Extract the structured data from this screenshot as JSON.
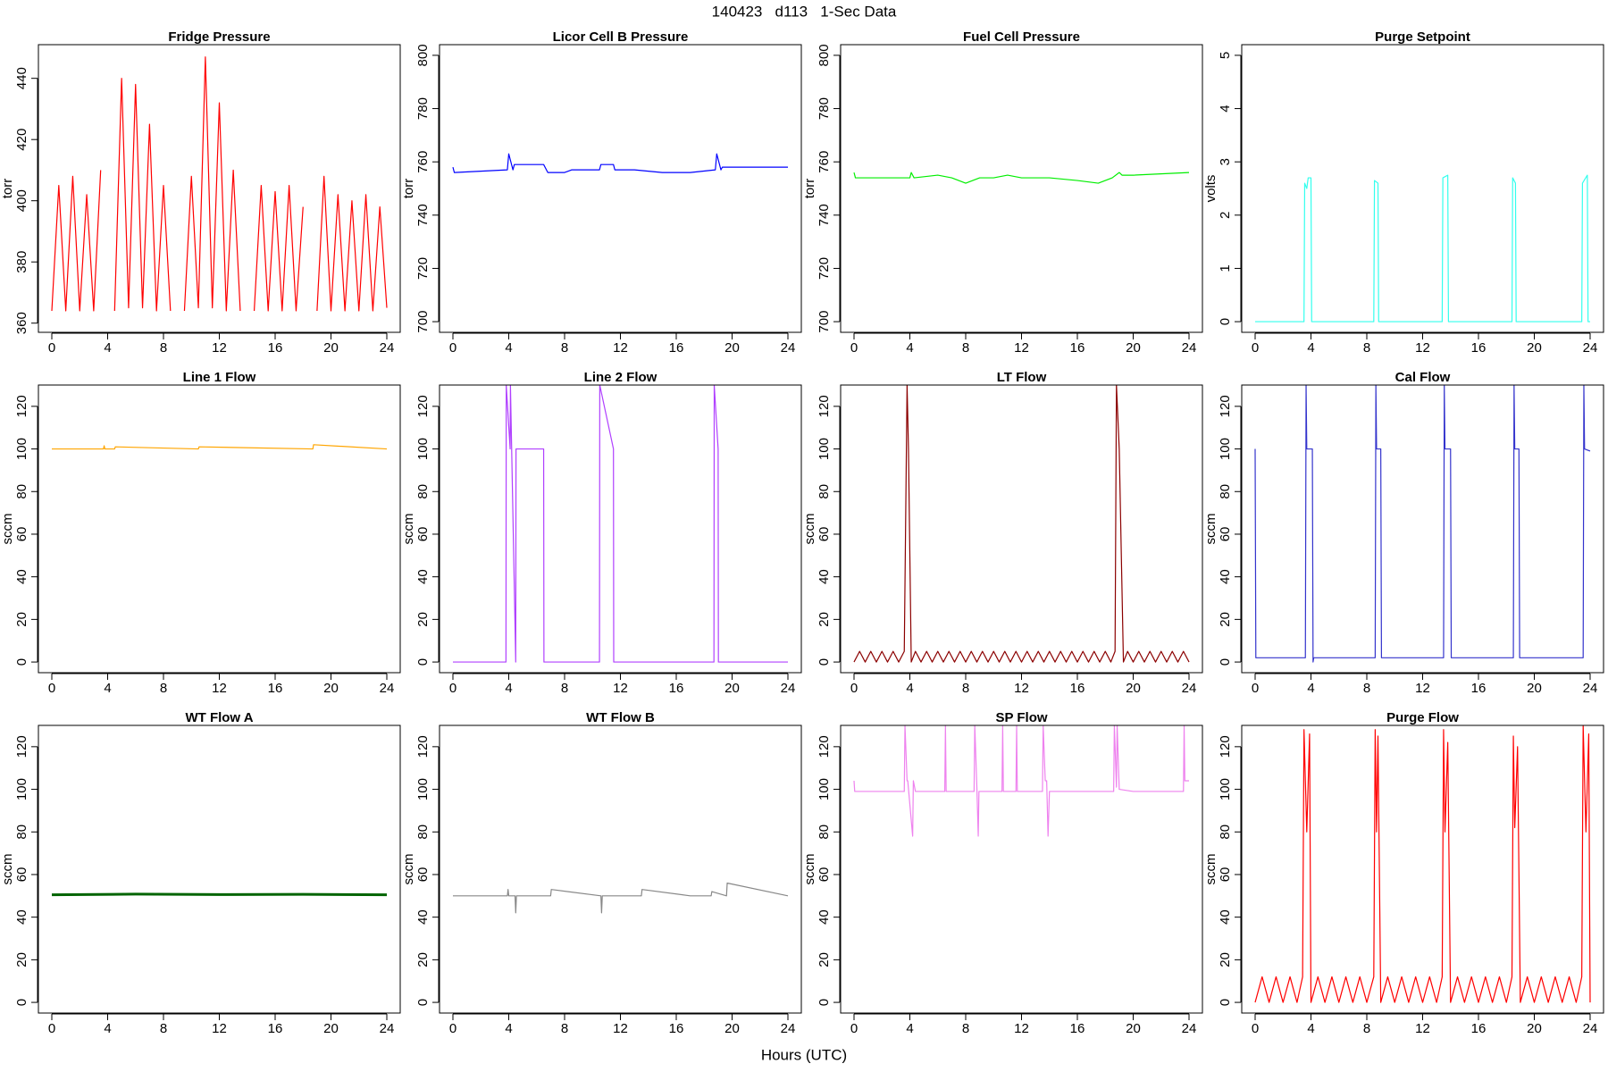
{
  "title": "140423   d113   1-Sec Data",
  "xlabel": "Hours (UTC)",
  "chart_data": [
    {
      "type": "line",
      "title": "Fridge Pressure",
      "ylabel": "torr",
      "color": "#ff0000",
      "x": [
        0,
        0.5,
        1,
        1.5,
        2,
        2.5,
        3,
        3.5,
        4,
        4.5,
        5,
        5.5,
        6,
        6.5,
        7,
        7.5,
        8,
        8.5,
        9,
        9.5,
        10,
        10.5,
        11,
        11.5,
        12,
        12.5,
        13,
        13.5,
        14,
        14.5,
        15,
        15.5,
        16,
        16.5,
        17,
        17.5,
        18,
        18.5,
        19,
        19.5,
        20,
        20.5,
        21,
        21.5,
        22,
        22.5,
        23,
        23.5,
        24
      ],
      "values": [
        364,
        405,
        364,
        408,
        364,
        402,
        364,
        410,
        null,
        364,
        440,
        365,
        438,
        365,
        425,
        364,
        405,
        364,
        null,
        364,
        408,
        365,
        447,
        365,
        432,
        364,
        410,
        364,
        null,
        364,
        405,
        364,
        403,
        364,
        405,
        364,
        398,
        null,
        364,
        408,
        364,
        402,
        364,
        400,
        364,
        402,
        364,
        398,
        365
      ],
      "xlim": [
        -0.96,
        24.96
      ],
      "ylim": [
        357,
        451
      ],
      "xticks": [
        0,
        4,
        8,
        12,
        16,
        20,
        24
      ],
      "yticks": [
        360,
        380,
        400,
        420,
        440
      ]
    },
    {
      "type": "line",
      "title": "Licor Cell B Pressure",
      "ylabel": "torr",
      "color": "#0000ff",
      "x": [
        0,
        0.1,
        3.9,
        4,
        4.3,
        4.4,
        6.5,
        6.8,
        8,
        8.5,
        10.5,
        10.6,
        11.5,
        11.6,
        13,
        15,
        17,
        18.8,
        18.9,
        19.2,
        19.3,
        20,
        24
      ],
      "values": [
        758,
        756,
        757,
        763,
        757,
        759,
        759,
        756,
        756,
        757,
        757,
        759,
        759,
        757,
        757,
        756,
        756,
        757,
        763,
        757,
        758,
        758,
        758
      ],
      "xlim": [
        -0.96,
        24.96
      ],
      "ylim": [
        696,
        804
      ],
      "xticks": [
        0,
        4,
        8,
        12,
        16,
        20,
        24
      ],
      "yticks": [
        700,
        720,
        740,
        760,
        780,
        800
      ]
    },
    {
      "type": "line",
      "title": "Fuel Cell Pressure",
      "ylabel": "torr",
      "color": "#00ee00",
      "x": [
        0,
        0.1,
        4,
        4.1,
        4.3,
        6,
        7,
        8,
        9,
        10,
        11,
        12,
        14,
        16,
        17.5,
        18.5,
        19,
        19.2,
        20,
        24
      ],
      "values": [
        756,
        754,
        754,
        756,
        754,
        755,
        754,
        752,
        754,
        754,
        755,
        754,
        754,
        753,
        752,
        754,
        756,
        755,
        755,
        756
      ],
      "xlim": [
        -0.96,
        24.96
      ],
      "ylim": [
        696,
        804
      ],
      "xticks": [
        0,
        4,
        8,
        12,
        16,
        20,
        24
      ],
      "yticks": [
        700,
        720,
        740,
        760,
        780,
        800
      ]
    },
    {
      "type": "line",
      "title": "Purge Setpoint",
      "ylabel": "volts",
      "color": "#33ffee",
      "x": [
        0,
        3.5,
        3.55,
        3.7,
        3.8,
        4,
        4.05,
        8.5,
        8.55,
        8.8,
        8.85,
        13.4,
        13.45,
        13.8,
        13.85,
        18.4,
        18.45,
        18.65,
        18.7,
        23.4,
        23.45,
        23.8,
        23.85,
        24
      ],
      "values": [
        0,
        0,
        2.6,
        2.5,
        2.7,
        2.7,
        0,
        0,
        2.65,
        2.6,
        0,
        0,
        2.7,
        2.75,
        0,
        0,
        2.7,
        2.6,
        0,
        0,
        2.6,
        2.75,
        0,
        0
      ],
      "xlim": [
        -0.96,
        24.96
      ],
      "ylim": [
        -0.2,
        5.2
      ],
      "xticks": [
        0,
        4,
        8,
        12,
        16,
        20,
        24
      ],
      "yticks": [
        0,
        1,
        2,
        3,
        4,
        5
      ]
    },
    {
      "type": "line",
      "title": "Line 1 Flow",
      "ylabel": "sccm",
      "color": "#ffa500",
      "x": [
        0,
        3.7,
        3.75,
        3.8,
        4.5,
        4.55,
        10.5,
        10.55,
        18.7,
        18.75,
        24
      ],
      "values": [
        100,
        100,
        101.5,
        100,
        100,
        101,
        100,
        101,
        100,
        102,
        100
      ],
      "xlim": [
        -0.96,
        24.96
      ],
      "ylim": [
        -5,
        130
      ],
      "xticks": [
        0,
        4,
        8,
        12,
        16,
        20,
        24
      ],
      "yticks": [
        0,
        20,
        40,
        60,
        80,
        100,
        120
      ]
    },
    {
      "type": "line",
      "title": "Line 2 Flow",
      "ylabel": "sccm",
      "color": "#b040ff",
      "x": [
        0,
        3.8,
        3.82,
        4.1,
        4.12,
        4.5,
        4.52,
        6.5,
        6.52,
        10.5,
        10.52,
        11.5,
        11.52,
        18.7,
        18.72,
        19,
        19.02,
        24
      ],
      "values": [
        0,
        0,
        130,
        100,
        130,
        0,
        100,
        100,
        0,
        0,
        130,
        100,
        0,
        0,
        130,
        100,
        0,
        0
      ],
      "xlim": [
        -0.96,
        24.96
      ],
      "ylim": [
        -5,
        130
      ],
      "xticks": [
        0,
        4,
        8,
        12,
        16,
        20,
        24
      ],
      "yticks": [
        0,
        20,
        40,
        60,
        80,
        100,
        120
      ]
    },
    {
      "type": "line",
      "title": "LT Flow",
      "ylabel": "sccm",
      "color": "#8b0000",
      "x": [
        0,
        0.4,
        0.8,
        1.2,
        1.6,
        2,
        2.4,
        2.8,
        3.2,
        3.6,
        3.8,
        3.9,
        4.1,
        4.4,
        4.8,
        5.2,
        5.6,
        6,
        6.4,
        6.8,
        7.2,
        7.6,
        8,
        8.4,
        8.8,
        9.2,
        9.6,
        10,
        10.4,
        10.8,
        11.2,
        11.6,
        12,
        12.4,
        12.8,
        13.2,
        13.6,
        14,
        14.4,
        14.8,
        15.2,
        15.6,
        16,
        16.4,
        16.8,
        17.2,
        17.6,
        18,
        18.4,
        18.7,
        18.8,
        19,
        19.3,
        19.6,
        20,
        20.4,
        20.8,
        21.2,
        21.6,
        22,
        22.4,
        22.8,
        23.2,
        23.6,
        24
      ],
      "values": [
        0,
        5,
        0,
        5,
        0,
        5,
        0,
        5,
        0,
        5,
        130,
        100,
        0,
        5,
        0,
        5,
        0,
        5,
        0,
        5,
        0,
        5,
        0,
        5,
        0,
        5,
        0,
        5,
        0,
        5,
        0,
        5,
        0,
        5,
        0,
        5,
        0,
        5,
        0,
        5,
        0,
        5,
        0,
        5,
        0,
        5,
        0,
        5,
        0,
        5,
        130,
        100,
        0,
        5,
        0,
        5,
        0,
        5,
        0,
        5,
        0,
        5,
        0,
        5,
        0
      ],
      "xlim": [
        -0.96,
        24.96
      ],
      "ylim": [
        -5,
        130
      ],
      "xticks": [
        0,
        4,
        8,
        12,
        16,
        20,
        24
      ],
      "yticks": [
        0,
        20,
        40,
        60,
        80,
        100,
        120
      ]
    },
    {
      "type": "line",
      "title": "Cal Flow",
      "ylabel": "sccm",
      "color": "#3333cc",
      "x": [
        0,
        0.05,
        0.1,
        3.6,
        3.65,
        3.7,
        4.1,
        4.15,
        4.2,
        8.6,
        8.65,
        8.7,
        9,
        9.05,
        13.5,
        13.55,
        13.6,
        14,
        14.05,
        18.5,
        18.55,
        18.6,
        18.9,
        18.95,
        23.5,
        23.55,
        23.6,
        24
      ],
      "values": [
        100,
        2,
        2,
        2,
        130,
        100,
        100,
        0,
        2,
        2,
        130,
        100,
        100,
        2,
        2,
        130,
        100,
        100,
        2,
        2,
        130,
        100,
        100,
        2,
        2,
        130,
        100,
        99
      ],
      "xlim": [
        -0.96,
        24.96
      ],
      "ylim": [
        -5,
        130
      ],
      "xticks": [
        0,
        4,
        8,
        12,
        16,
        20,
        24
      ],
      "yticks": [
        0,
        20,
        40,
        60,
        80,
        100,
        120
      ]
    },
    {
      "type": "line",
      "title": "WT Flow A",
      "ylabel": "sccm",
      "color": "#006400",
      "x": [
        0,
        6,
        12,
        18,
        24
      ],
      "values": [
        50.5,
        50.8,
        50.6,
        50.7,
        50.5
      ],
      "xlim": [
        -0.96,
        24.96
      ],
      "ylim": [
        -5,
        130
      ],
      "xticks": [
        0,
        4,
        8,
        12,
        16,
        20,
        24
      ],
      "yticks": [
        0,
        20,
        40,
        60,
        80,
        100,
        120
      ]
    },
    {
      "type": "line",
      "title": "WT Flow B",
      "ylabel": "sccm",
      "color": "#888888",
      "x": [
        0,
        3.9,
        3.95,
        4,
        4.45,
        4.5,
        4.55,
        7,
        7.05,
        10.6,
        10.65,
        10.7,
        13.5,
        13.55,
        17,
        18.5,
        18.55,
        19.6,
        19.65,
        24
      ],
      "values": [
        50,
        50,
        53,
        50,
        50,
        42,
        50,
        50,
        53,
        50,
        42,
        50,
        50,
        53,
        50,
        50,
        52,
        50,
        56,
        50
      ],
      "xlim": [
        -0.96,
        24.96
      ],
      "ylim": [
        -5,
        130
      ],
      "xticks": [
        0,
        4,
        8,
        12,
        16,
        20,
        24
      ],
      "yticks": [
        0,
        20,
        40,
        60,
        80,
        100,
        120
      ]
    },
    {
      "type": "line",
      "title": "SP Flow",
      "ylabel": "sccm",
      "color": "#ee82ee",
      "x": [
        0,
        0.05,
        3.6,
        3.65,
        3.8,
        3.85,
        4.2,
        4.25,
        4.4,
        4.5,
        6.5,
        6.55,
        6.6,
        8.6,
        8.65,
        8.8,
        8.9,
        8.95,
        10.6,
        10.65,
        10.7,
        11.6,
        11.65,
        11.7,
        13.5,
        13.55,
        13.7,
        13.8,
        13.9,
        14,
        16,
        18,
        18.6,
        18.65,
        18.8,
        18.85,
        19,
        20,
        23.6,
        23.65,
        23.7,
        24
      ],
      "values": [
        104,
        99,
        99,
        130,
        104,
        104,
        78,
        104,
        99,
        99,
        99,
        130,
        99,
        99,
        130,
        101,
        78,
        99,
        99,
        130,
        99,
        99,
        130,
        99,
        99,
        130,
        104,
        104,
        78,
        99,
        99,
        99,
        99,
        130,
        101,
        130,
        100,
        99,
        99,
        130,
        104,
        104
      ],
      "xlim": [
        -0.96,
        24.96
      ],
      "ylim": [
        -5,
        130
      ],
      "xticks": [
        0,
        4,
        8,
        12,
        16,
        20,
        24
      ],
      "yticks": [
        0,
        20,
        40,
        60,
        80,
        100,
        120
      ]
    },
    {
      "type": "line",
      "title": "Purge Flow",
      "ylabel": "sccm",
      "color": "#ff0000",
      "x": [
        0,
        0.5,
        1,
        1.5,
        2,
        2.5,
        3,
        3.4,
        3.5,
        3.7,
        3.9,
        4,
        4.5,
        5,
        5.5,
        6,
        6.5,
        7,
        7.5,
        8,
        8.5,
        8.6,
        8.7,
        8.8,
        9,
        9.5,
        10,
        10.5,
        11,
        11.5,
        12,
        12.5,
        13,
        13.4,
        13.5,
        13.6,
        13.8,
        14,
        14.5,
        15,
        15.5,
        16,
        16.5,
        17,
        17.5,
        18,
        18.4,
        18.5,
        18.6,
        18.8,
        19,
        19.5,
        20,
        20.5,
        21,
        21.5,
        22,
        22.5,
        23,
        23.4,
        23.5,
        23.7,
        23.9,
        24
      ],
      "values": [
        0,
        12,
        0,
        12,
        0,
        12,
        0,
        12,
        128,
        80,
        126,
        0,
        12,
        0,
        12,
        0,
        12,
        0,
        12,
        0,
        12,
        128,
        80,
        125,
        0,
        12,
        0,
        12,
        0,
        12,
        0,
        12,
        0,
        12,
        128,
        80,
        122,
        0,
        12,
        0,
        12,
        0,
        12,
        0,
        12,
        0,
        12,
        125,
        82,
        120,
        0,
        12,
        0,
        12,
        0,
        12,
        0,
        12,
        0,
        12,
        130,
        80,
        126,
        0
      ],
      "xlim": [
        -0.96,
        24.96
      ],
      "ylim": [
        -5,
        130
      ],
      "xticks": [
        0,
        4,
        8,
        12,
        16,
        20,
        24
      ],
      "yticks": [
        0,
        20,
        40,
        60,
        80,
        100,
        120
      ]
    }
  ]
}
